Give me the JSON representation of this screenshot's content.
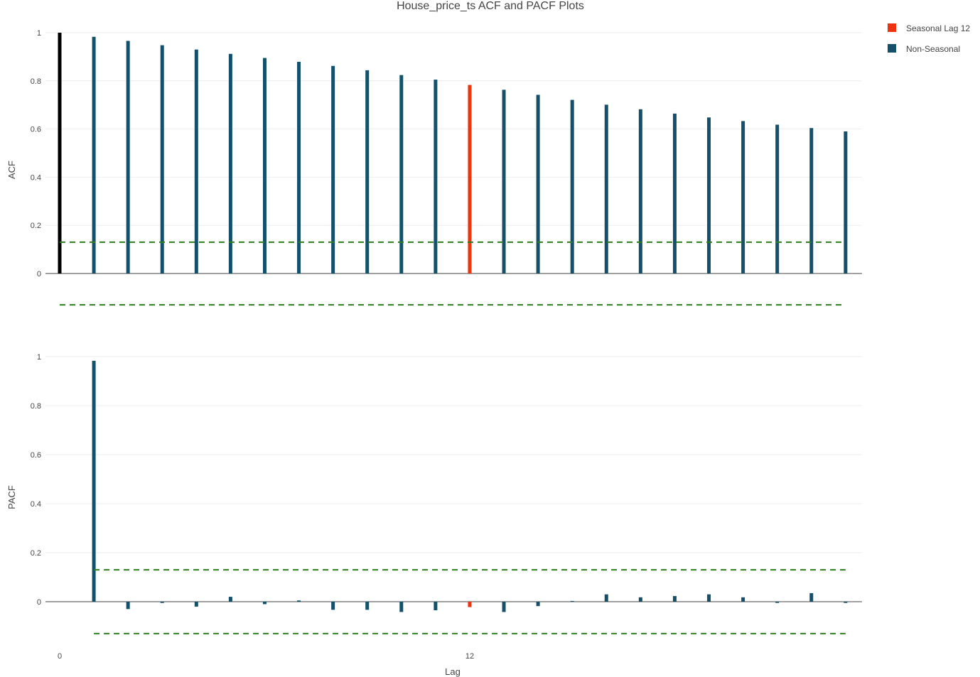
{
  "chart_data": {
    "type": "bar",
    "title": "House_price_ts ACF and PACF Plots",
    "xlabel": "Lag",
    "x_ticks": [
      0,
      12
    ],
    "legend": {
      "placement": "top-right",
      "entries": [
        {
          "name": "Seasonal Lag 12",
          "color": "#ee3311"
        },
        {
          "name": "Non-Seasonal",
          "color": "#15506b"
        }
      ]
    },
    "colors": {
      "lag0": "#000000",
      "seasonal": "#ee3311",
      "non_seasonal": "#15506b",
      "ci": "#2f7d1f"
    },
    "panels": [
      {
        "ylabel": "ACF",
        "ylim": [
          -0.13,
          1.0
        ],
        "y_ticks": [
          0,
          0.2,
          0.4,
          0.6,
          0.8,
          1
        ],
        "ci": 0.13,
        "lags": [
          0,
          1,
          2,
          3,
          4,
          5,
          6,
          7,
          8,
          9,
          10,
          11,
          12,
          13,
          14,
          15,
          16,
          17,
          18,
          19,
          20,
          21,
          22,
          23
        ],
        "values": [
          1.0,
          0.983,
          0.966,
          0.948,
          0.93,
          0.912,
          0.895,
          0.879,
          0.862,
          0.844,
          0.824,
          0.805,
          0.783,
          0.763,
          0.742,
          0.721,
          0.701,
          0.682,
          0.664,
          0.648,
          0.633,
          0.618,
          0.604,
          0.59
        ]
      },
      {
        "ylabel": "PACF",
        "ylim": [
          -0.13,
          1.0
        ],
        "y_ticks": [
          0,
          0.2,
          0.4,
          0.6,
          0.8,
          1
        ],
        "ci": 0.13,
        "lags": [
          1,
          2,
          3,
          4,
          5,
          6,
          7,
          8,
          9,
          10,
          11,
          12,
          13,
          14,
          15,
          16,
          17,
          18,
          19,
          20,
          21,
          22,
          23
        ],
        "values": [
          0.983,
          -0.03,
          -0.005,
          -0.02,
          0.02,
          -0.01,
          0.005,
          -0.033,
          -0.033,
          -0.042,
          -0.035,
          -0.022,
          -0.042,
          -0.018,
          0.003,
          0.03,
          0.018,
          0.023,
          0.03,
          0.018,
          -0.005,
          0.035,
          -0.005
        ]
      }
    ]
  }
}
